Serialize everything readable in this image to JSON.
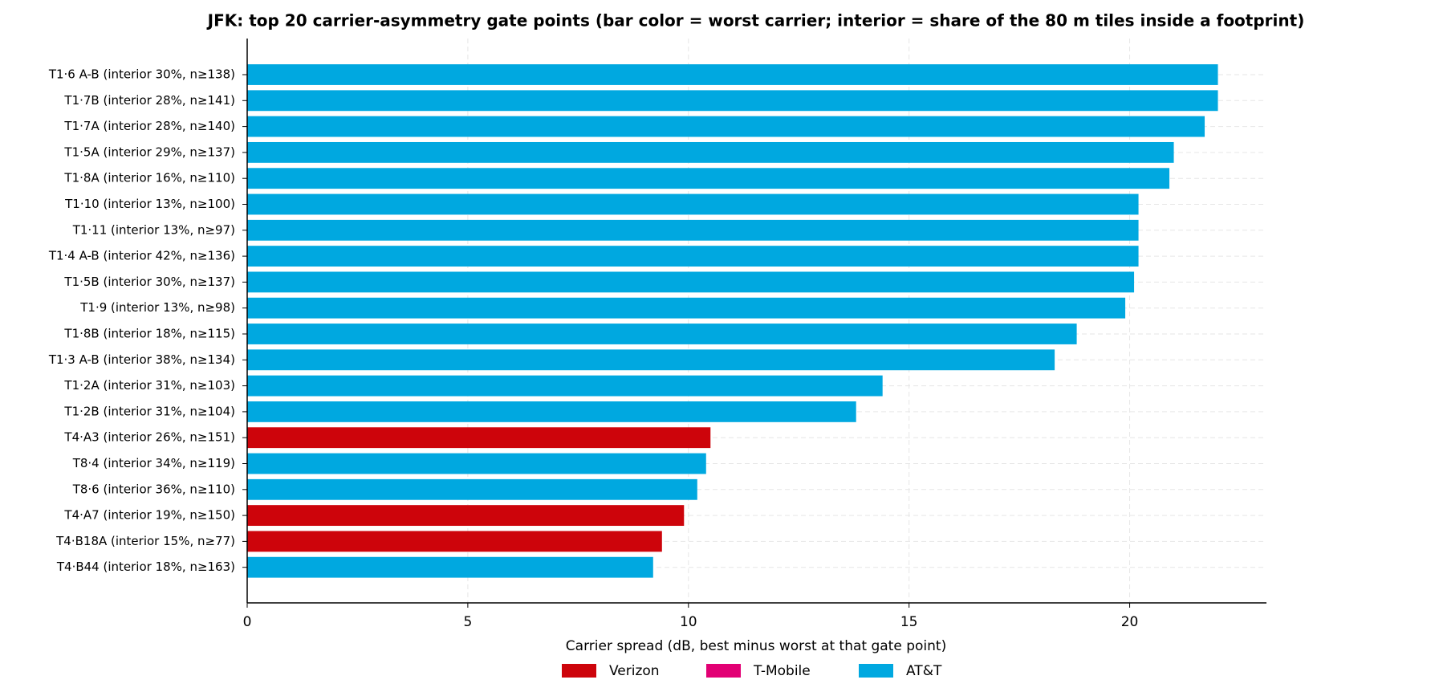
{
  "chart_data": {
    "type": "barh",
    "title": "JFK: top 20 carrier-asymmetry gate points (bar color = worst carrier; interior = share of the 80 m tiles inside a footprint)",
    "x_label": "Carrier spread (dB, best minus worst at that gate point)",
    "categories": [
      "T1·6 A-B (interior 30%, n≥138)",
      "T1·7B (interior 28%, n≥141)",
      "T1·7A (interior 28%, n≥140)",
      "T1·5A (interior 29%, n≥137)",
      "T1·8A (interior 16%, n≥110)",
      "T1·10 (interior 13%, n≥100)",
      "T1·11 (interior 13%, n≥97)",
      "T1·4 A-B (interior 42%, n≥136)",
      "T1·5B (interior 30%, n≥137)",
      "T1·9 (interior 13%, n≥98)",
      "T1·8B (interior 18%, n≥115)",
      "T1·3 A-B (interior 38%, n≥134)",
      "T1·2A (interior 31%, n≥103)",
      "T1·2B (interior 31%, n≥104)",
      "T4·A3 (interior 26%, n≥151)",
      "T8·4 (interior 34%, n≥119)",
      "T8·6 (interior 36%, n≥110)",
      "T4·A7 (interior 19%, n≥150)",
      "T4·B18A (interior 15%, n≥77)",
      "T4·B44 (interior 18%, n≥163)"
    ],
    "values": [
      22.0,
      22.0,
      21.7,
      21.0,
      20.9,
      20.2,
      20.2,
      20.2,
      20.1,
      19.9,
      18.8,
      18.3,
      14.4,
      13.8,
      10.5,
      10.4,
      10.2,
      9.9,
      9.4,
      9.2
    ],
    "colors": [
      "#00a8e0",
      "#00a8e0",
      "#00a8e0",
      "#00a8e0",
      "#00a8e0",
      "#00a8e0",
      "#00a8e0",
      "#00a8e0",
      "#00a8e0",
      "#00a8e0",
      "#00a8e0",
      "#00a8e0",
      "#00a8e0",
      "#00a8e0",
      "#cd040b",
      "#00a8e0",
      "#00a8e0",
      "#cd040b",
      "#cd040b",
      "#00a8e0"
    ],
    "legend": [
      {
        "name": "Verizon",
        "color": "#cd040b"
      },
      {
        "name": "T-Mobile",
        "color": "#e20074"
      },
      {
        "name": "AT&T",
        "color": "#00a8e0"
      }
    ],
    "xlim": [
      0,
      23.1
    ],
    "xticks": [
      0,
      5,
      10,
      15,
      20
    ],
    "grid": true
  }
}
